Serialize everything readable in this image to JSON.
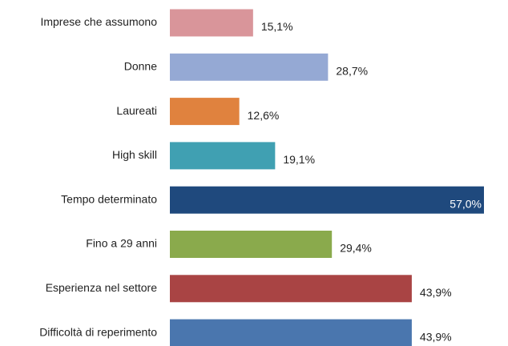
{
  "chart_data": {
    "type": "barh",
    "categories": [
      "Imprese che assumono",
      "Donne",
      "Laureati",
      "High skill",
      "Tempo determinato",
      "Fino a 29 anni",
      "Esperienza nel settore",
      "Difficoltà di reperimento"
    ],
    "values": [
      15.1,
      28.7,
      12.6,
      19.1,
      57.0,
      29.4,
      43.9,
      43.9
    ],
    "value_labels": [
      "15,1%",
      "28,7%",
      "12,6%",
      "19,1%",
      "57,0%",
      "29,4%",
      "43,9%",
      "43,9%"
    ],
    "colors": [
      "#d9959a",
      "#95a9d4",
      "#e0823e",
      "#40a0b2",
      "#1f497d",
      "#8aaa4c",
      "#a94444",
      "#4a76ae"
    ]
  }
}
